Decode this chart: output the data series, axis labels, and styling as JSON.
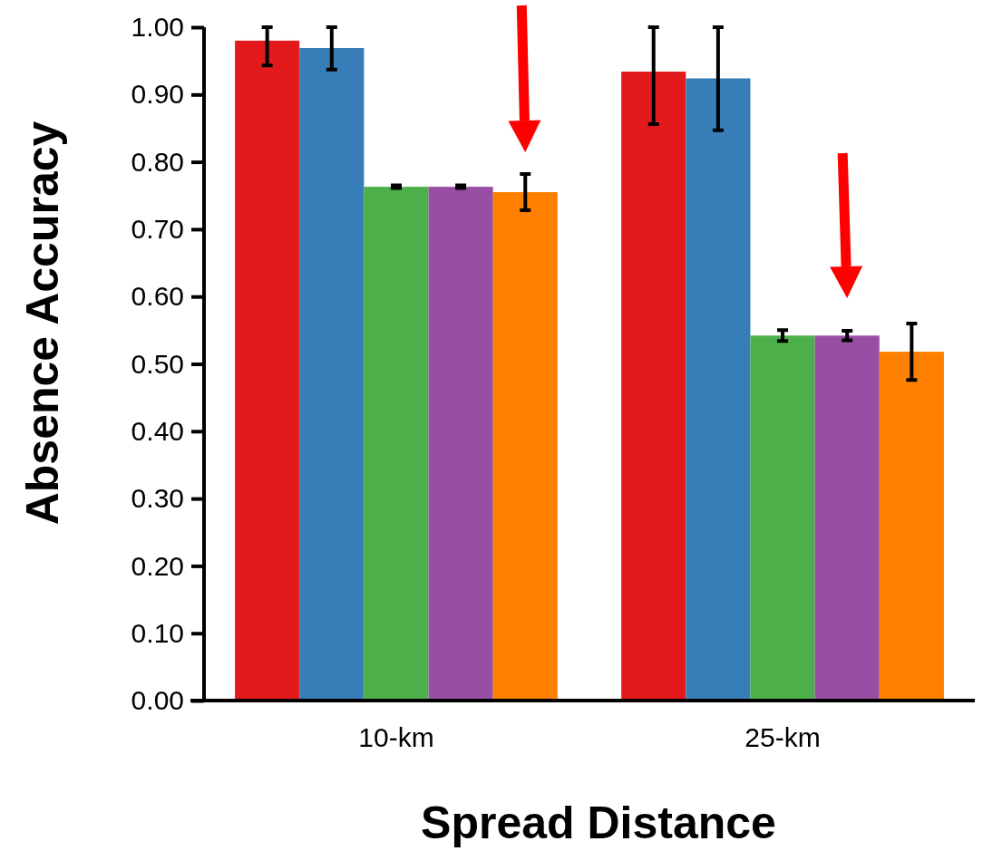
{
  "chart_data": {
    "type": "bar",
    "xlabel": "Spread Distance",
    "ylabel": "Absence Accuracy",
    "categories": [
      "10-km",
      "25-km"
    ],
    "series": [
      {
        "color": "#e31a1c",
        "values": [
          0.98,
          0.934
        ],
        "errors": [
          [
            0.943,
            1.0
          ],
          [
            0.856,
            1.0
          ]
        ]
      },
      {
        "color": "#377eb8",
        "values": [
          0.969,
          0.924
        ],
        "errors": [
          [
            0.937,
            1.0
          ],
          [
            0.847,
            1.0
          ]
        ]
      },
      {
        "color": "#4daf4a",
        "values": [
          0.763,
          0.542
        ],
        "errors": [
          0.002,
          0.008
        ]
      },
      {
        "color": "#984ea3",
        "values": [
          0.763,
          0.542
        ],
        "errors": [
          0.002,
          0.007
        ]
      },
      {
        "color": "#ff7f00",
        "values": [
          0.755,
          0.518
        ],
        "errors": [
          0.027,
          0.042
        ]
      }
    ],
    "ylim": [
      0,
      1
    ],
    "yticks": [
      {
        "value": 0,
        "label": "0.00"
      },
      {
        "value": 0.1,
        "label": "0.10"
      },
      {
        "value": 0.2,
        "label": "0.20"
      },
      {
        "value": 0.3,
        "label": "0.30"
      },
      {
        "value": 0.4,
        "label": "0.40"
      },
      {
        "value": 0.5,
        "label": "0.50"
      },
      {
        "value": 0.6,
        "label": "0.60"
      },
      {
        "value": 0.7,
        "label": "0.70"
      },
      {
        "value": 0.8,
        "label": "0.80"
      },
      {
        "value": 0.9,
        "label": "0.90"
      },
      {
        "value": 1,
        "label": "1.00"
      }
    ],
    "grid": false
  }
}
